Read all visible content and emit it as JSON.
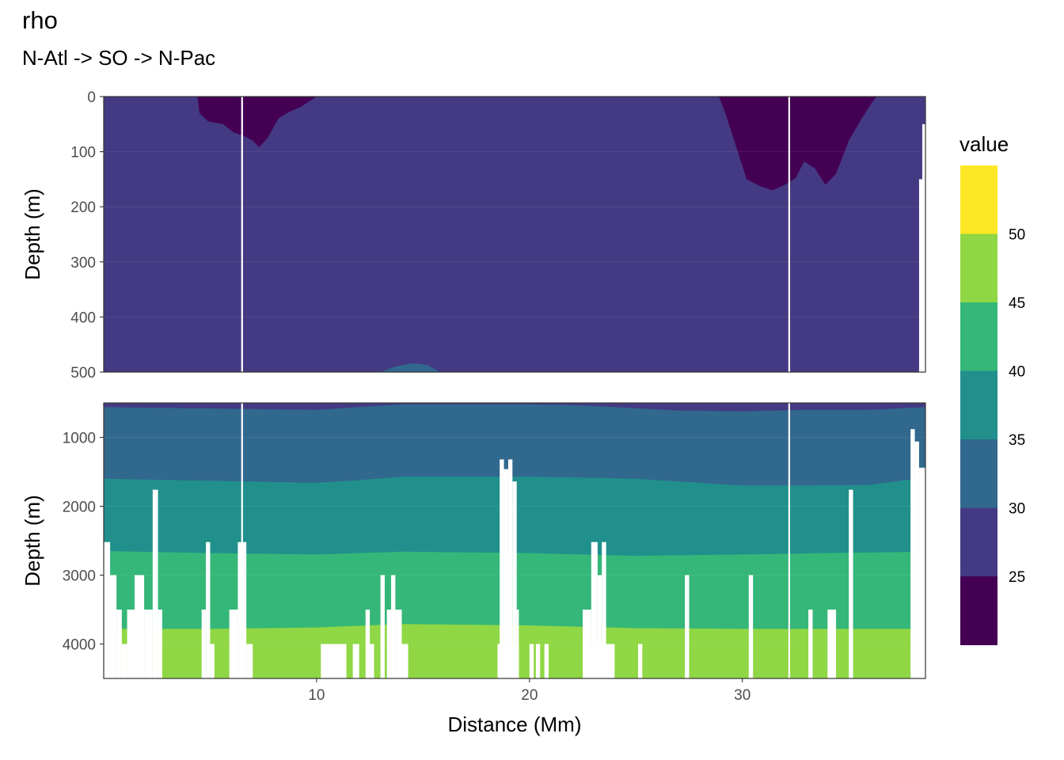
{
  "chart_data": {
    "type": "heatmap",
    "title": "rho",
    "subtitle": "N-Atl -> SO -> N-Pac",
    "xlabel": "Distance (Mm)",
    "ylabel": "Depth (m)",
    "xlim": [
      0,
      38.6
    ],
    "x_ticks": [
      10,
      20,
      30
    ],
    "legend": {
      "title": "value",
      "position": "right",
      "breaks": [
        25,
        30,
        35,
        40,
        45,
        50
      ],
      "bins": [
        {
          "range": "< 25",
          "color": "#440154"
        },
        {
          "range": "25-30",
          "color": "#443A83"
        },
        {
          "range": "30-35",
          "color": "#31688E"
        },
        {
          "range": "35-40",
          "color": "#21908C"
        },
        {
          "range": "40-45",
          "color": "#35B779"
        },
        {
          "range": "45-50",
          "color": "#8FD744"
        },
        {
          "range": "> 50",
          "color": "#FDE725"
        }
      ]
    },
    "panels": [
      {
        "name": "upper",
        "ylim": [
          0,
          500
        ],
        "y_ticks": [
          0,
          100,
          200,
          300,
          400,
          500
        ],
        "background_band": "25-30",
        "contours": [
          {
            "band": "< 25",
            "x": [
              4.4,
              4.5,
              4.9,
              5.6,
              6.1,
              6.6,
              7.0,
              7.3,
              7.7,
              8.2,
              8.7,
              9.2,
              9.8,
              10.0
            ],
            "depth": [
              0,
              30,
              45,
              50,
              65,
              72,
              80,
              92,
              75,
              40,
              28,
              20,
              5,
              0
            ]
          },
          {
            "band": "< 25",
            "x": [
              28.9,
              29.2,
              29.7,
              30.2,
              30.8,
              31.4,
              32.0,
              32.5,
              32.9,
              33.4,
              33.9,
              34.4,
              35.0,
              35.6,
              36.1,
              36.3
            ],
            "depth": [
              0,
              30,
              90,
              150,
              162,
              170,
              160,
              148,
              118,
              130,
              160,
              140,
              80,
              40,
              10,
              0
            ]
          },
          {
            "band": "30-35",
            "x": [
              13.0,
              13.7,
              14.5,
              15.2,
              15.8
            ],
            "depth": [
              500,
              490,
              484,
              487,
              500
            ]
          }
        ],
        "white_columns_x": [
          6.5,
          32.2
        ]
      },
      {
        "name": "lower",
        "ylim": [
          500,
          4500
        ],
        "y_ticks": [
          1000,
          2000,
          3000,
          4000
        ],
        "band_boundaries": [
          {
            "between": "25-30 / 30-35",
            "x": [
              0,
              5,
              10,
              12,
              14,
              17,
              20,
              22,
              24,
              27,
              30,
              33,
              36,
              38.6
            ],
            "depth": [
              560,
              580,
              600,
              560,
              520,
              520,
              520,
              530,
              560,
              610,
              620,
              600,
              600,
              560
            ]
          },
          {
            "between": "30-35 / 35-40",
            "x": [
              0,
              5,
              10,
              12,
              14,
              20,
              25,
              30,
              33,
              36,
              38.6
            ],
            "depth": [
              1600,
              1630,
              1660,
              1620,
              1570,
              1570,
              1600,
              1700,
              1700,
              1690,
              1580
            ]
          },
          {
            "between": "35-40 / 40-45",
            "x": [
              0,
              5,
              10,
              14,
              20,
              25,
              30,
              34,
              38.6
            ],
            "depth": [
              2650,
              2680,
              2700,
              2660,
              2680,
              2720,
              2700,
              2680,
              2660
            ]
          },
          {
            "between": "40-45 / 45-50",
            "x": [
              0,
              5,
              10,
              14,
              20,
              25,
              30,
              34,
              38.6
            ],
            "depth": [
              3780,
              3780,
              3760,
              3710,
              3730,
              3770,
              3780,
              3780,
              3780
            ]
          }
        ],
        "white_columns_x": [
          6.5,
          32.2
        ]
      }
    ]
  }
}
